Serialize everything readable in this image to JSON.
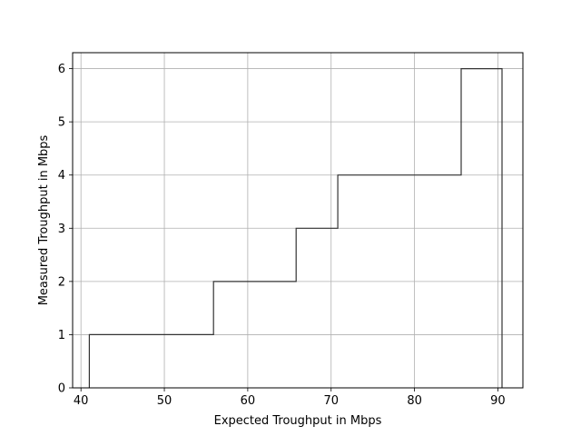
{
  "chart_data": {
    "type": "line",
    "step": true,
    "title": "",
    "xlabel": "Expected Troughput in Mbps",
    "ylabel": "Measured Troughput in Mbps",
    "xlim": [
      39,
      93
    ],
    "ylim": [
      0,
      6.3
    ],
    "xticks": [
      40,
      50,
      60,
      70,
      80,
      90
    ],
    "yticks": [
      0,
      1,
      2,
      3,
      4,
      5,
      6
    ],
    "grid": true,
    "legend": "none",
    "line_color": "#333333",
    "series": [
      {
        "x": [
          41.0,
          41.0,
          55.9,
          55.9,
          65.8,
          65.8,
          70.8,
          70.8,
          85.6,
          85.6,
          90.5,
          90.5
        ],
        "y": [
          0,
          1,
          1,
          2,
          2,
          3,
          3,
          4,
          4,
          6,
          6,
          0
        ]
      }
    ]
  }
}
